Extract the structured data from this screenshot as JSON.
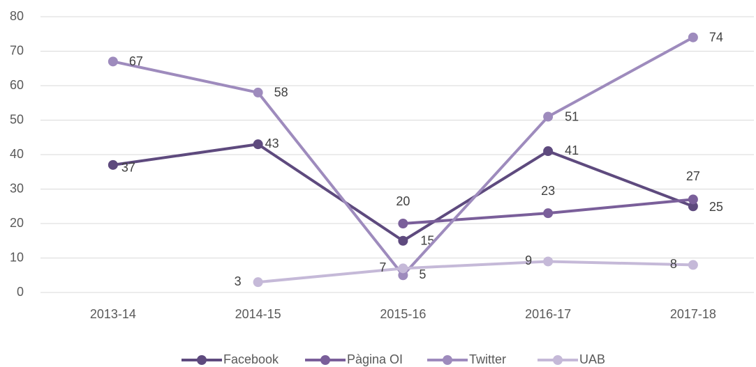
{
  "chart_data": {
    "type": "line",
    "categories": [
      "2013-14",
      "2014-15",
      "2015-16",
      "2016-17",
      "2017-18"
    ],
    "series": [
      {
        "name": "Facebook",
        "color": "#5e4a7e",
        "values": [
          37,
          43,
          15,
          41,
          25
        ]
      },
      {
        "name": "Pàgina OI",
        "color": "#7a5f9a",
        "values": [
          null,
          null,
          20,
          23,
          27
        ]
      },
      {
        "name": "Twitter",
        "color": "#9e8bbd",
        "values": [
          67,
          58,
          5,
          51,
          74
        ]
      },
      {
        "name": "UAB",
        "color": "#c5b9d8",
        "values": [
          null,
          3,
          7,
          9,
          8
        ]
      }
    ],
    "ylim": [
      0,
      80
    ],
    "yticks": [
      0,
      10,
      20,
      30,
      40,
      50,
      60,
      70,
      80
    ],
    "grid": true,
    "legend": "bottom"
  }
}
